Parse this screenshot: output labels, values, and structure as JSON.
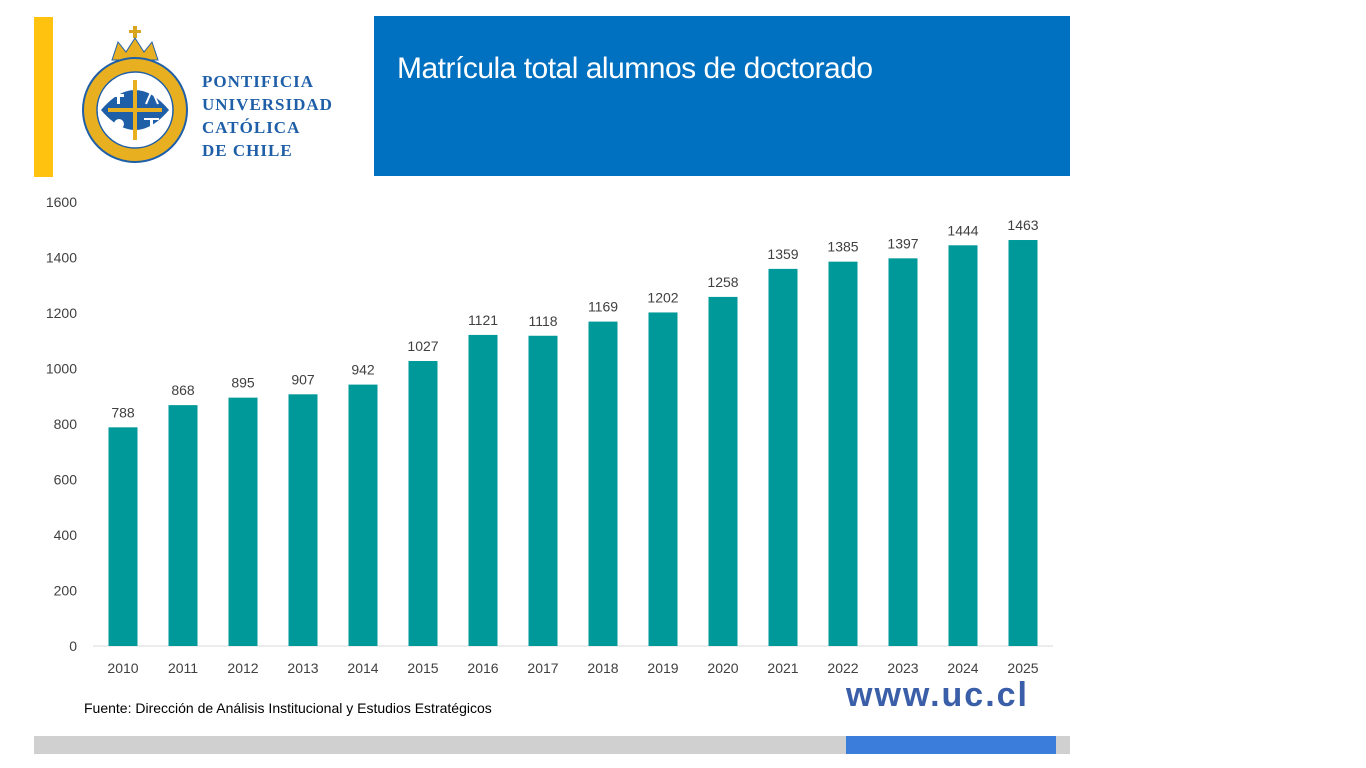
{
  "header": {
    "institution_lines": [
      "PONTIFICIA",
      "UNIVERSIDAD",
      "CATÓLICA",
      "DE CHILE"
    ],
    "title": "Matrícula total alumnos de doctorado"
  },
  "colors": {
    "accent_yellow": "#ffc20e",
    "title_blue": "#0070c0",
    "bar_teal": "#009999",
    "footer_blue": "#3a7ddb",
    "footer_gray": "#d0d0d0"
  },
  "chart_data": {
    "type": "bar",
    "title": "",
    "xlabel": "",
    "ylabel": "",
    "categories": [
      "2010",
      "2011",
      "2012",
      "2013",
      "2014",
      "2015",
      "2016",
      "2017",
      "2018",
      "2019",
      "2020",
      "2021",
      "2022",
      "2023",
      "2024",
      "2025"
    ],
    "series": [
      {
        "values": [
          788,
          868,
          895,
          907,
          942,
          1027,
          1121,
          1118,
          1169,
          1202,
          1258,
          1359,
          1385,
          1397,
          1444,
          1463
        ]
      }
    ],
    "ylim": [
      0,
      1600
    ],
    "yticks": [
      0,
      200,
      400,
      600,
      800,
      1000,
      1200,
      1400,
      1600
    ],
    "grid": false,
    "data_labels": true
  },
  "footer": {
    "source": "Fuente: Dirección de Análisis Institucional y Estudios Estratégicos",
    "website": "www.uc.cl"
  }
}
